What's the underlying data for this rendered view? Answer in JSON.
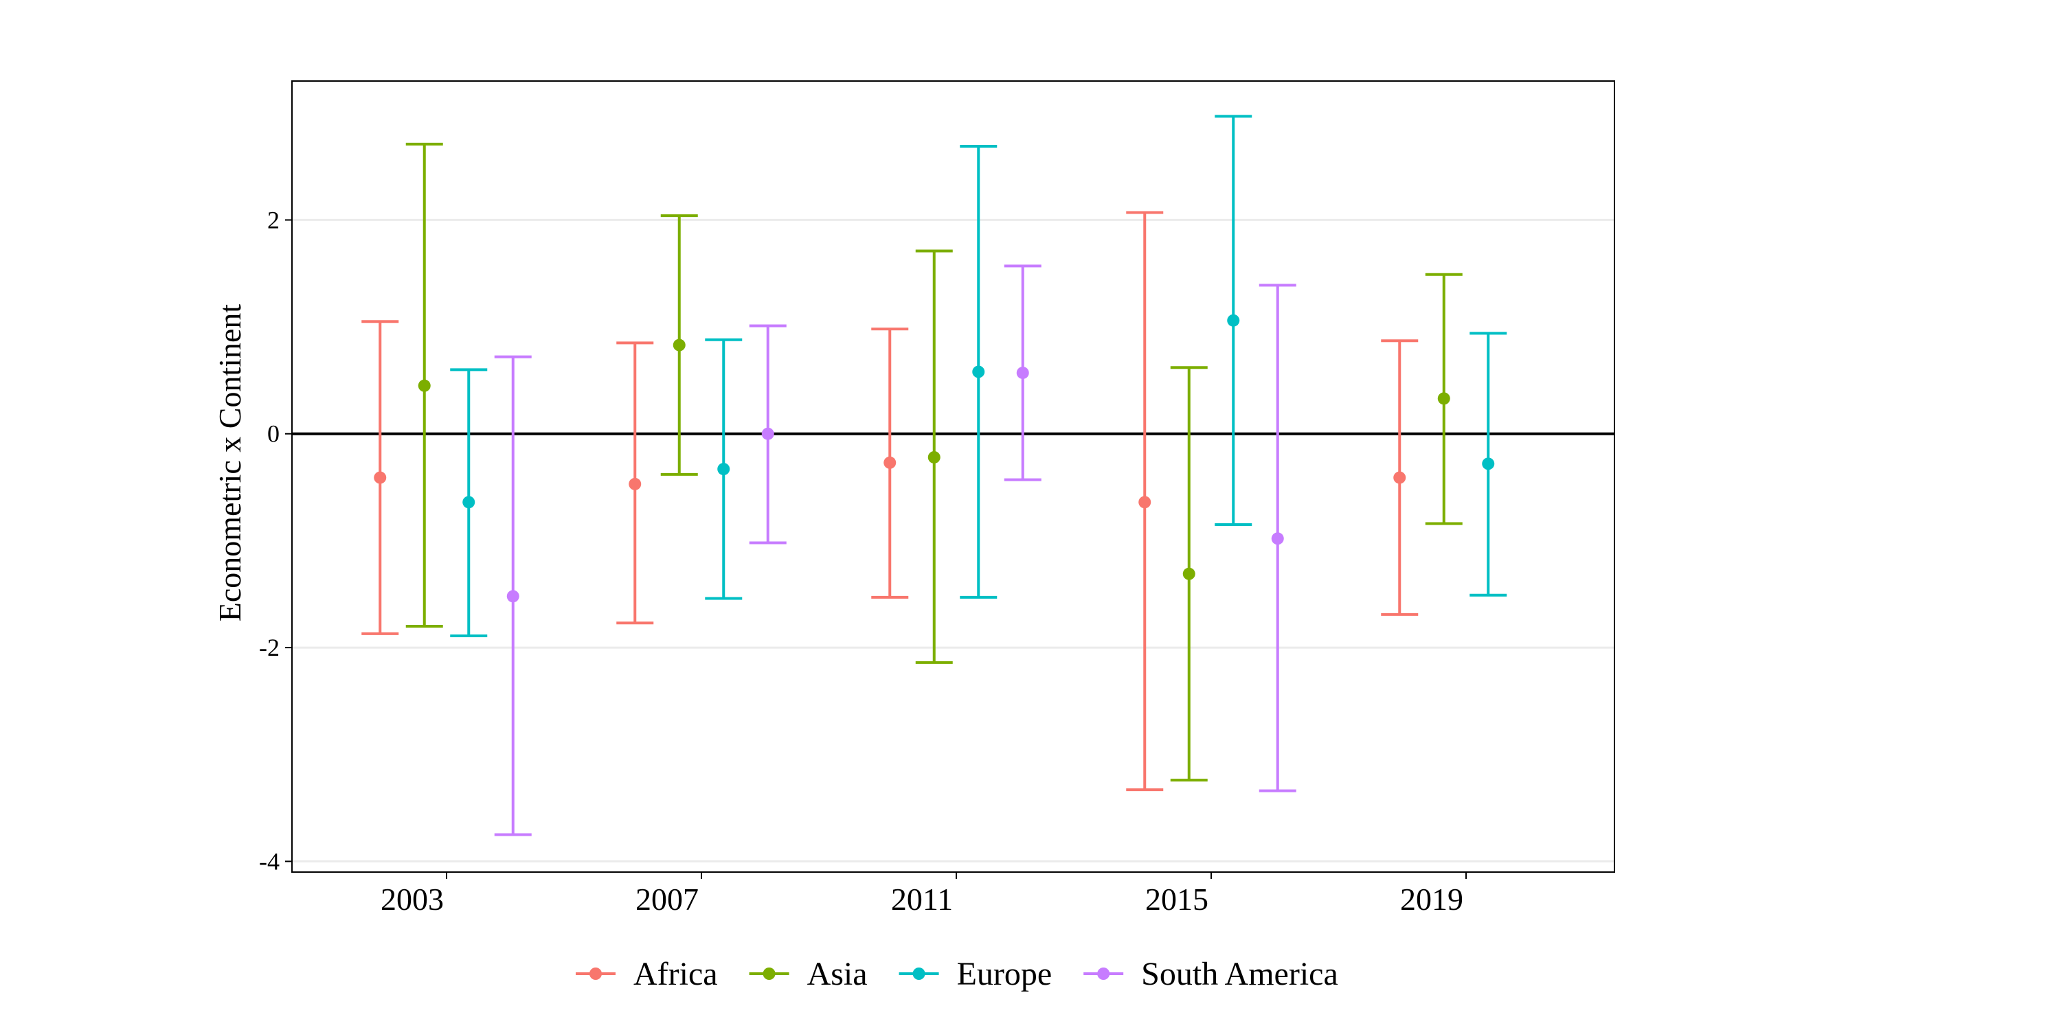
{
  "chart_data": {
    "type": "errorbar",
    "title": "",
    "xlabel": "",
    "ylabel": "Econometric x Continent",
    "categories": [
      "2003",
      "2007",
      "2011",
      "2015",
      "2019"
    ],
    "ylim": [
      -4.1,
      3.3
    ],
    "yticks": [
      -4,
      -2,
      0,
      2
    ],
    "ytick_labels": [
      "-4",
      "-2",
      "0",
      "2"
    ],
    "reference_line": 0,
    "grid": "horizontal major",
    "legend_position": "bottom",
    "series": [
      {
        "name": "Africa",
        "color": "#F8766D",
        "points": [
          {
            "x": "2003",
            "estimate": -0.41,
            "lower": -1.87,
            "upper": 1.05
          },
          {
            "x": "2007",
            "estimate": -0.47,
            "lower": -1.77,
            "upper": 0.85
          },
          {
            "x": "2011",
            "estimate": -0.27,
            "lower": -1.53,
            "upper": 0.98
          },
          {
            "x": "2015",
            "estimate": -0.64,
            "lower": -3.33,
            "upper": 2.07
          },
          {
            "x": "2019",
            "estimate": -0.41,
            "lower": -1.69,
            "upper": 0.87
          }
        ]
      },
      {
        "name": "Asia",
        "color": "#7CAE00",
        "points": [
          {
            "x": "2003",
            "estimate": 0.45,
            "lower": -1.8,
            "upper": 2.71
          },
          {
            "x": "2007",
            "estimate": 0.83,
            "lower": -0.38,
            "upper": 2.04
          },
          {
            "x": "2011",
            "estimate": -0.22,
            "lower": -2.14,
            "upper": 1.71
          },
          {
            "x": "2015",
            "estimate": -1.31,
            "lower": -3.24,
            "upper": 0.62
          },
          {
            "x": "2019",
            "estimate": 0.33,
            "lower": -0.84,
            "upper": 1.49
          }
        ]
      },
      {
        "name": "Europe",
        "color": "#00BFC4",
        "points": [
          {
            "x": "2003",
            "estimate": -0.64,
            "lower": -1.89,
            "upper": 0.6
          },
          {
            "x": "2007",
            "estimate": -0.33,
            "lower": -1.54,
            "upper": 0.88
          },
          {
            "x": "2011",
            "estimate": 0.58,
            "lower": -1.53,
            "upper": 2.69
          },
          {
            "x": "2015",
            "estimate": 1.06,
            "lower": -0.85,
            "upper": 2.97
          },
          {
            "x": "2019",
            "estimate": -0.28,
            "lower": -1.51,
            "upper": 0.94
          }
        ]
      },
      {
        "name": "South America",
        "color": "#C77CFF",
        "points": [
          {
            "x": "2003",
            "estimate": -1.52,
            "lower": -3.75,
            "upper": 0.72
          },
          {
            "x": "2007",
            "estimate": 0.0,
            "lower": -1.02,
            "upper": 1.01
          },
          {
            "x": "2011",
            "estimate": 0.57,
            "lower": -0.43,
            "upper": 1.57
          },
          {
            "x": "2015",
            "estimate": -0.98,
            "lower": -3.34,
            "upper": 1.39
          }
        ]
      }
    ]
  }
}
